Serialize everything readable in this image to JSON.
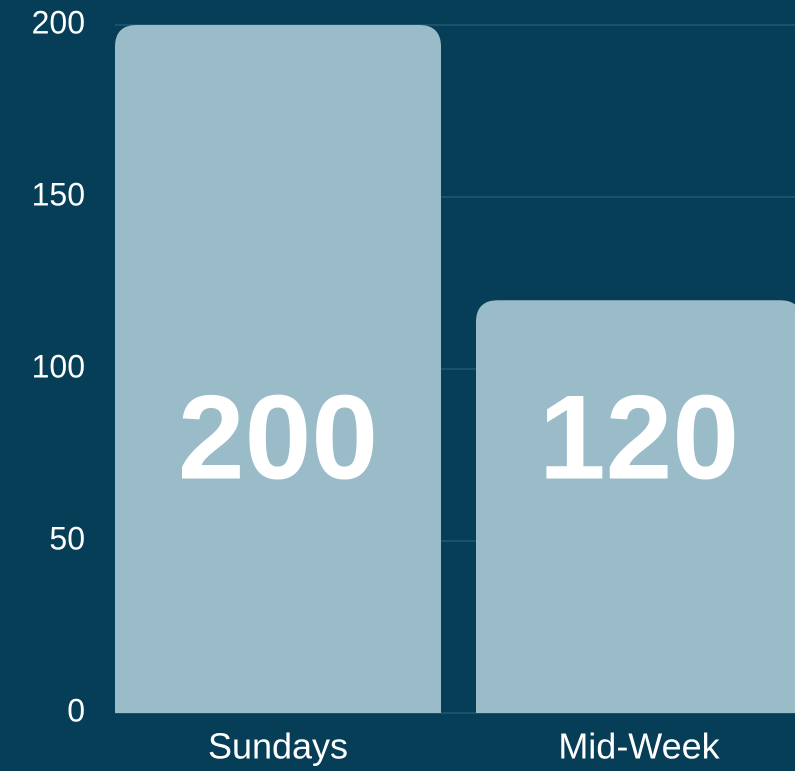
{
  "chart_data": {
    "type": "bar",
    "categories": [
      "Sundays",
      "Mid-Week"
    ],
    "values": [
      200,
      120
    ],
    "color": "#9abbc8",
    "ylim": [
      0,
      200
    ],
    "yticks": [
      0,
      50,
      100,
      150,
      200
    ],
    "grid": true
  }
}
